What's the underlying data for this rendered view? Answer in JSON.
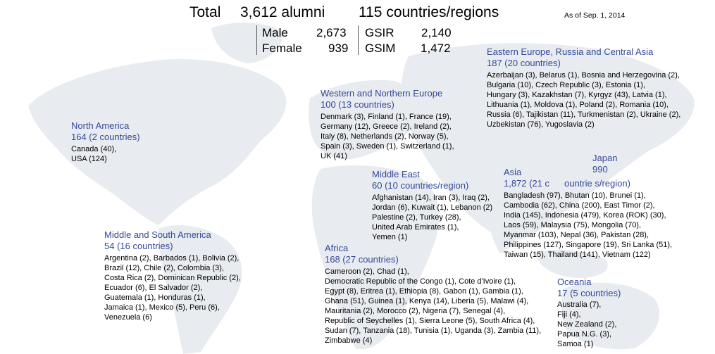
{
  "header": {
    "total_label": "Total",
    "alumni": "3,612 alumni",
    "countries": "115 countries/regions",
    "as_of": "As of Sep. 1, 2014"
  },
  "stats": {
    "male_label": "Male",
    "male_value": "2,673",
    "female_label": "Female",
    "female_value": "939",
    "gsir_label": "GSIR",
    "gsir_value": "2,140",
    "gsim_label": "GSIM",
    "gsim_value": "1,472"
  },
  "regions": {
    "eastern_europe": {
      "name": "Eastern Europe, Russia and Central Asia",
      "count": "187 (20 countries)",
      "lines": [
        "Azerbaijan (3), Belarus (1), Bosnia and Herzegovina (2),",
        "Bulgaria (10), Czech Republic (3), Estonia (1),",
        "Hungary (3), Kazakhstan (7), Kyrgyz (43), Latvia (1),",
        "Lithuania (1), Moldova (1), Poland (2), Romania (10),",
        "Russia (6), Tajikistan (11), Turkmenistan (2), Ukraine (2),",
        "Uzbekistan (76), Yugoslavia (2)"
      ]
    },
    "western_europe": {
      "name": "Western and Northern Europe",
      "count": "100 (13 countries)",
      "lines": [
        "Denmark (3), Finland (1), France (19),",
        "Germany (12), Greece (2), Ireland (2),",
        "Italy (8), Netherlands (2), Norway (5),",
        "Spain (3), Sweden (1), Switzerland (1),",
        "UK (41)"
      ]
    },
    "north_america": {
      "name": "North America",
      "count": "164 (2 countries)",
      "lines": [
        "Canada (40),",
        "USA (124)"
      ]
    },
    "middle_east": {
      "name": "Middle East",
      "count": "60 (10 countries/region)",
      "lines": [
        "Afghanistan (14), Iran (3), Iraq (2),",
        "Jordan (6), Kuwait (1), Lebanon (2)",
        "Palestine (2), Turkey (28),",
        "United Arab Emirates (1),",
        "Yemen (1)"
      ]
    },
    "japan": {
      "name": "Japan",
      "count": "990"
    },
    "asia": {
      "name": "Asia",
      "count": "1,872 (21 c",
      "count_overlap": "ountrie s/region)",
      "lines": [
        "Bangladesh (97), Bhutan (10), Brunei (1),",
        "Cambodia (62), China (200), East Timor  (2),",
        "India (145),  Indonesia (479), Korea (ROK) (30),",
        "Laos (59), Malaysia (75), Mongolia (70),",
        "Myanmar (103), Nepal (36), Pakistan (28),",
        "Philippines (127), Singapore (19), Sri Lanka (51),",
        "Taiwan (15), Thailand (141), Vietnam (122)"
      ]
    },
    "south_america": {
      "name": "Middle and South America",
      "count": "54 (16 countries)",
      "lines": [
        "Argentina (2), Barbados (1), Bolivia (2),",
        "Brazil (12), Chile (2), Colombia (3),",
        "Costa Rica (2), Dominican Republic (2),",
        "Ecuador (6), El Salvador (2),",
        "Guatemala (1), Honduras (1),",
        "Jamaica (1), Mexico (5), Peru (6),",
        "Venezuela (6)"
      ]
    },
    "africa": {
      "name": "Africa",
      "count": "168 (27 countries)",
      "lines": [
        "Cameroon (2), Chad (1),",
        "Democratic Republic of the Congo (1), Cote d'Ivoire (1),",
        "Egypt (8), Eritrea (1), Ethiopia (8), Gabon (1), Gambia (1),",
        "Ghana (51), Guinea (1), Kenya (14), Liberia (5), Malawi (4),",
        "Mauritania (2), Morocco (2), Nigeria (7), Senegal (4),",
        "Republic of Seychelles (1),  Sierra Leone (5), South Africa (4),",
        "Sudan (7), Tanzania (18), Tunisia (1), Uganda (3), Zambia (11),",
        "Zimbabwe (4)"
      ]
    },
    "oceania": {
      "name": "Oceania",
      "count": "17 (5 countries)",
      "lines": [
        "Australia (7),",
        "Fiji (4),",
        "New Zealand (2),",
        "Papua N.G. (3),",
        "Samoa (1)"
      ]
    }
  }
}
